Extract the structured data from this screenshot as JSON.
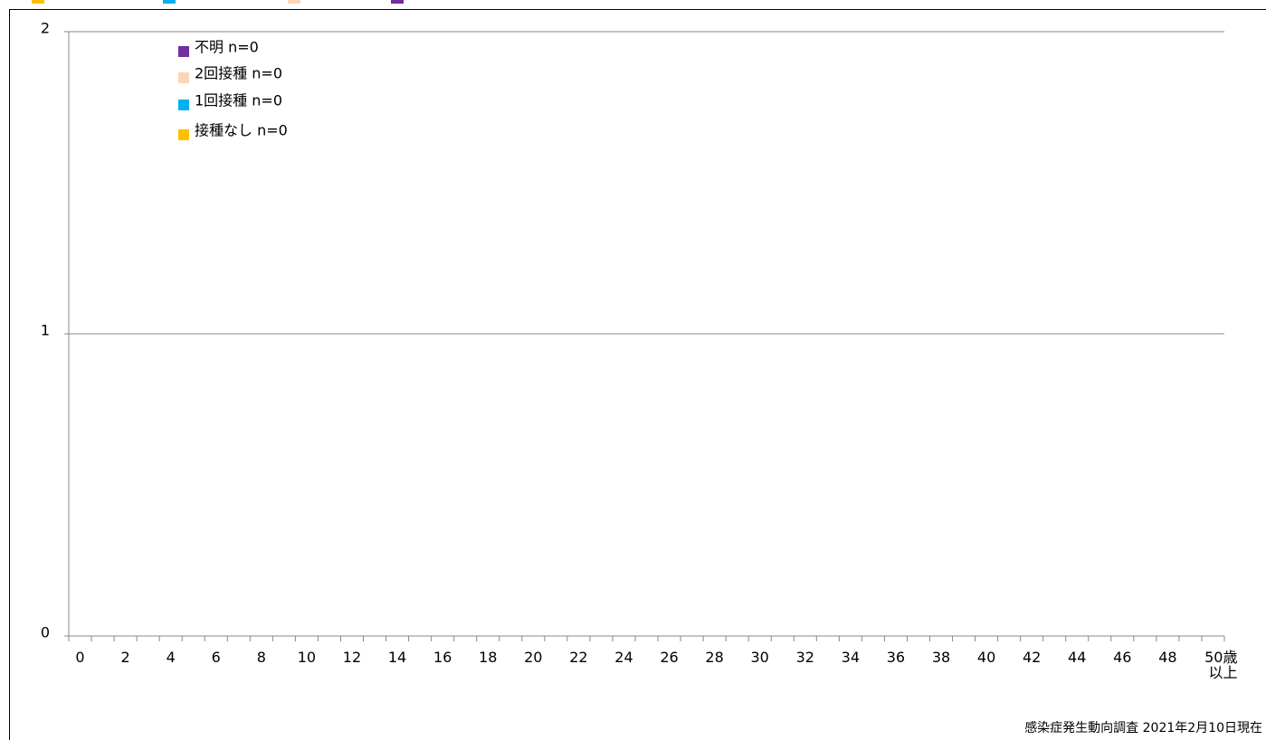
{
  "chart_data": {
    "type": "stacked-bar",
    "categories": [
      "0",
      null,
      "2",
      null,
      "4",
      null,
      "6",
      null,
      "8",
      null,
      "10",
      null,
      "12",
      null,
      "14",
      null,
      "16",
      null,
      "18",
      null,
      "20",
      null,
      "22",
      null,
      "24",
      null,
      "26",
      null,
      "28",
      null,
      "30",
      null,
      "32",
      null,
      "34",
      null,
      "36",
      null,
      "38",
      null,
      "40",
      null,
      "42",
      null,
      "44",
      null,
      "46",
      null,
      "48",
      null,
      "50歳以上"
    ],
    "series": [
      {
        "name": "接種なし n=0",
        "color": "#ffc000",
        "values": [
          0,
          0,
          0,
          0,
          0,
          0,
          0,
          0,
          0,
          0,
          0,
          0,
          0,
          0,
          0,
          0,
          0,
          0,
          0,
          0,
          0,
          0,
          0,
          0,
          0,
          0,
          0,
          0,
          0,
          0,
          0,
          0,
          0,
          0,
          0,
          0,
          0,
          0,
          0,
          0,
          0,
          0,
          0,
          0,
          0,
          0,
          0,
          0,
          0,
          0,
          0
        ]
      },
      {
        "name": "1回接種 n=0",
        "color": "#00b0f0",
        "values": [
          0,
          0,
          0,
          0,
          0,
          0,
          0,
          0,
          0,
          0,
          0,
          0,
          0,
          0,
          0,
          0,
          0,
          0,
          0,
          0,
          0,
          0,
          0,
          0,
          0,
          0,
          0,
          0,
          0,
          0,
          0,
          0,
          0,
          0,
          0,
          0,
          0,
          0,
          0,
          0,
          0,
          0,
          0,
          0,
          0,
          0,
          0,
          0,
          0,
          0,
          0
        ]
      },
      {
        "name": "2回接種 n=0",
        "color": "#fbd5b5",
        "values": [
          0,
          0,
          0,
          0,
          0,
          0,
          0,
          0,
          0,
          0,
          0,
          0,
          0,
          0,
          0,
          0,
          0,
          0,
          0,
          0,
          0,
          0,
          0,
          0,
          0,
          0,
          0,
          0,
          0,
          0,
          0,
          0,
          0,
          0,
          0,
          0,
          0,
          0,
          0,
          0,
          0,
          0,
          0,
          0,
          0,
          0,
          0,
          0,
          0,
          0,
          0
        ]
      },
      {
        "name": "不明 n=0",
        "color": "#7030a0",
        "values": [
          0,
          0,
          0,
          0,
          0,
          0,
          0,
          0,
          0,
          0,
          0,
          0,
          0,
          0,
          0,
          0,
          0,
          0,
          0,
          0,
          0,
          0,
          0,
          0,
          0,
          0,
          0,
          0,
          0,
          0,
          0,
          0,
          0,
          0,
          0,
          0,
          0,
          0,
          0,
          0,
          0,
          0,
          0,
          0,
          0,
          0,
          0,
          0,
          0,
          0,
          0
        ]
      }
    ],
    "ylim": [
      0,
      2
    ],
    "yticks": [
      0,
      1,
      2
    ],
    "grid": true,
    "source": "感染症発生動向調査 2021年2月10日現在"
  }
}
